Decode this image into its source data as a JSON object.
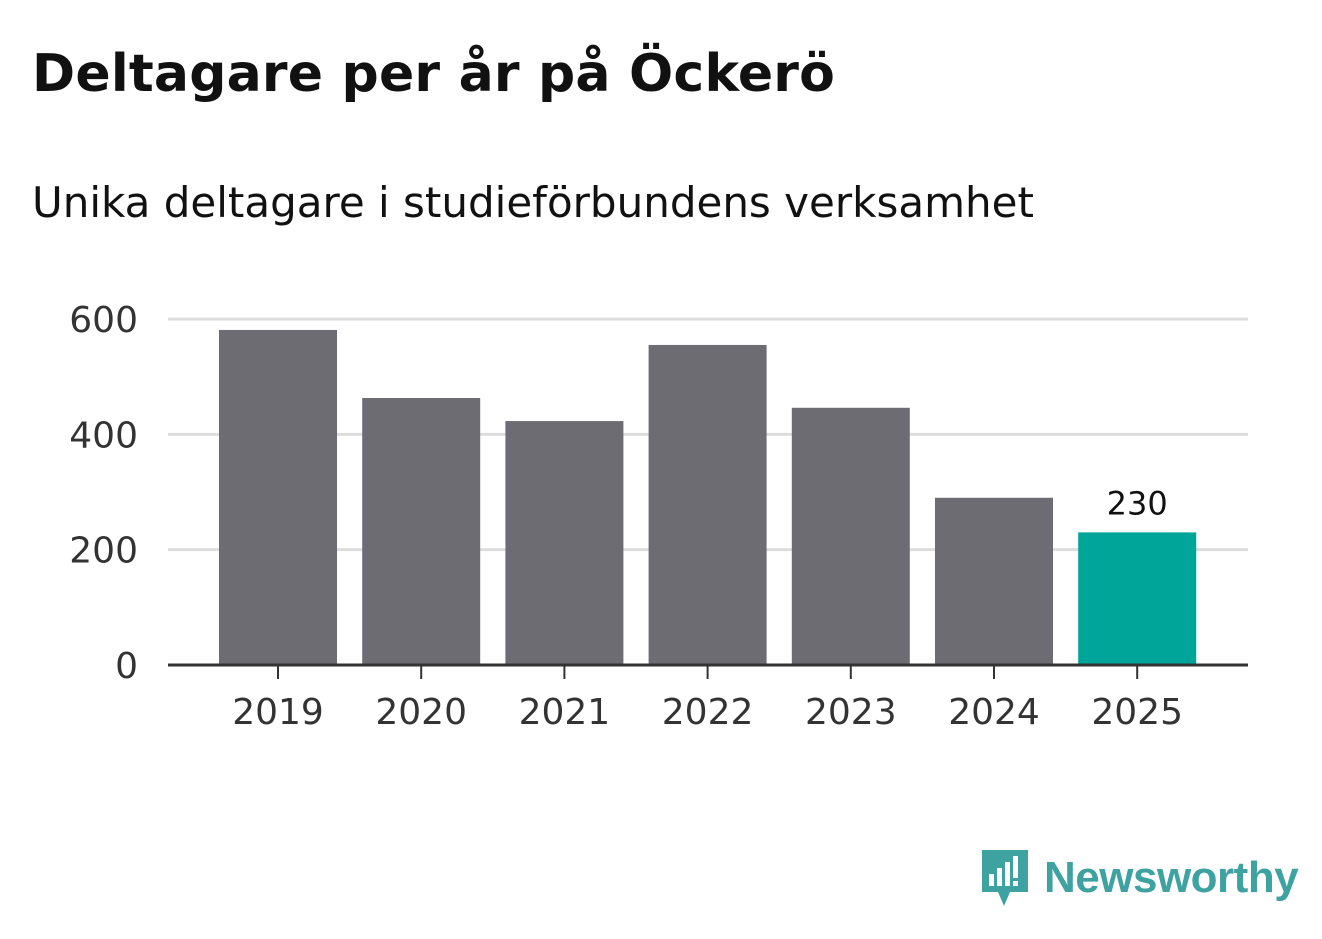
{
  "header": {
    "title": "Deltagare per år på Öckerö",
    "subtitle": "Unika deltagare i studieförbundens verksamhet"
  },
  "branding": {
    "logo_text": "Newsworthy",
    "logo_icon": "newsworthy-bar-chart-icon",
    "logo_color": "#3ea3a0"
  },
  "colors": {
    "bar": "#6d6c73",
    "highlight": "#00a599",
    "grid": "#dddddd",
    "axis": "#333333",
    "tick_text": "#333333"
  },
  "chart_data": {
    "type": "bar",
    "title": "Deltagare per år på Öckerö",
    "subtitle": "Unika deltagare i studieförbundens verksamhet",
    "xlabel": "",
    "ylabel": "",
    "categories": [
      "2019",
      "2020",
      "2021",
      "2022",
      "2023",
      "2024",
      "2025"
    ],
    "values": [
      581,
      463,
      423,
      555,
      446,
      290,
      230
    ],
    "ylim": [
      0,
      600
    ],
    "yticks": [
      "0",
      "200",
      "400",
      "600"
    ],
    "grid": true,
    "highlight_index": 6,
    "data_labels": [
      {
        "index": 6,
        "text": "230"
      }
    ]
  }
}
